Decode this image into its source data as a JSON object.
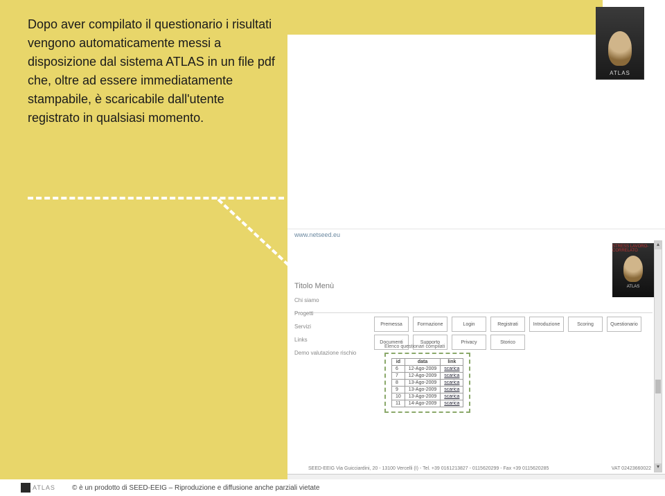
{
  "slide": {
    "paragraph": "Dopo aver compilato il questionario i risultati vengono automaticamente messi a disposizione dal sistema ATLAS in un file pdf che, oltre ad essere immediatamente stampabile, è scaricabile dall'utente registrato in qualsiasi momento."
  },
  "logo": {
    "brand": "ATLAS",
    "sub": ""
  },
  "browser": {
    "url": "www.netseed.eu",
    "brand_tag": "STRESS LAVORO-CORRELATO",
    "brand_small": "ATLAS",
    "menu_title": "Titolo Menù",
    "menu_items": [
      "Chi siamo",
      "Progetti",
      "Servizi",
      "Links",
      "Demo valutazione rischio"
    ],
    "tabs_row1": [
      "Premessa",
      "Formazione",
      "Login",
      "Registrati",
      "Introduzione",
      "Scoring",
      "Questionario"
    ],
    "tabs_row2": [
      "Documenti",
      "Supporto",
      "Privacy",
      "Storico"
    ],
    "table_caption": "Elenco questionari compilati",
    "table": {
      "headers": [
        "id",
        "data",
        "link"
      ],
      "rows": [
        [
          "6",
          "12-Ago-2009",
          "scarica"
        ],
        [
          "7",
          "12-Ago-2009",
          "scarica"
        ],
        [
          "8",
          "13-Ago-2009",
          "scarica"
        ],
        [
          "9",
          "13-Ago-2009",
          "scarica"
        ],
        [
          "10",
          "13-Ago-2009",
          "scarica"
        ],
        [
          "11",
          "14-Ago-2009",
          "scarica"
        ]
      ]
    },
    "footer_left": "SEED-EEIG   Via Guicciardini, 20 - 13100 Vercelli (I) - Tel. +39 0161213827 - 0115620299 - Fax +39 0115620285",
    "footer_right": "VAT 02423660022"
  },
  "page_footer": {
    "logo_text": "ATLAS",
    "text": "© è un prodotto di SEED-EEIG – Riproduzione e diffusione anche parziali vietate"
  },
  "colors": {
    "yellow": "#e8d66a",
    "dash_white": "#ffffff",
    "dash_green": "#8aa86a"
  }
}
